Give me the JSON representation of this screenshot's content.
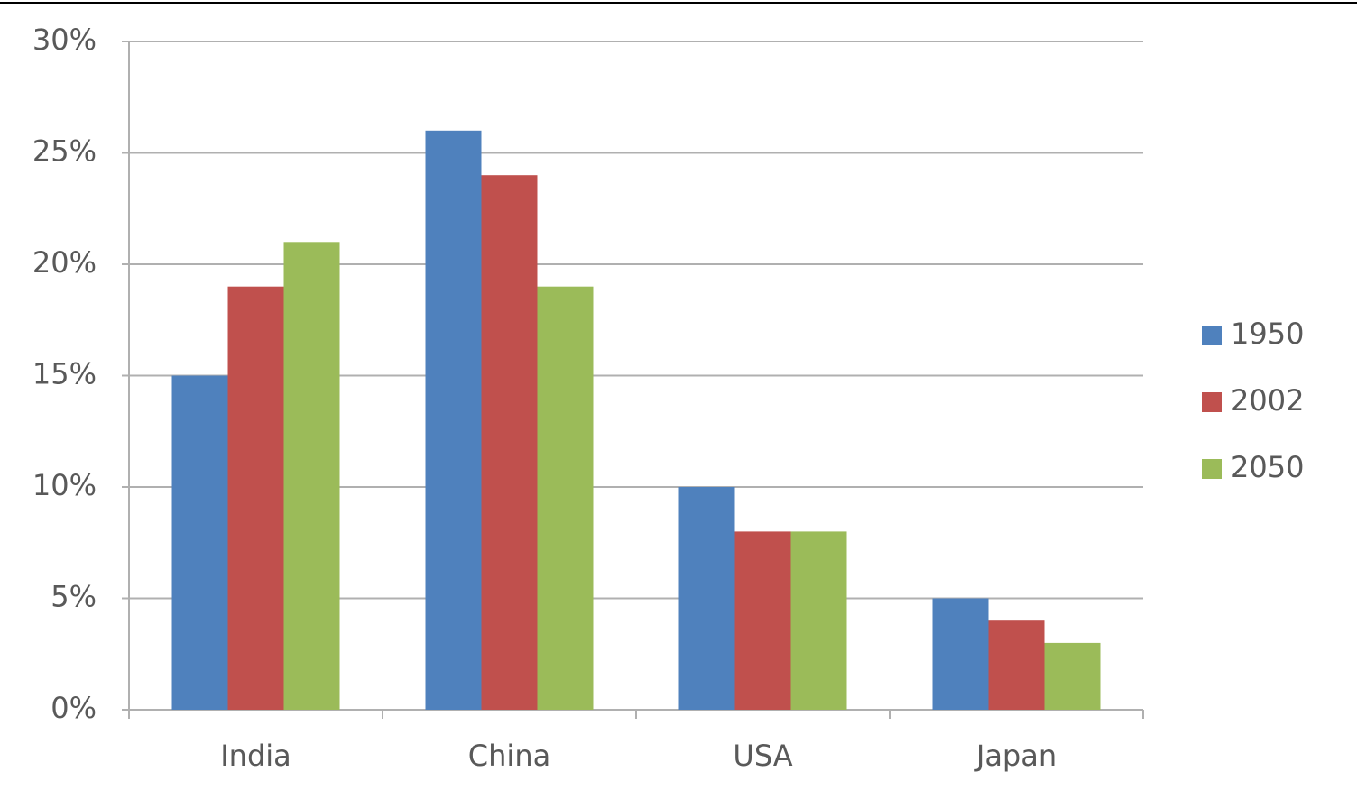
{
  "chart_data": {
    "type": "bar",
    "categories": [
      "India",
      "China",
      "USA",
      "Japan"
    ],
    "series": [
      {
        "name": "1950",
        "color": "#4f81bd",
        "values": [
          15,
          26,
          10,
          5
        ]
      },
      {
        "name": "2002",
        "color": "#c0504d",
        "values": [
          19,
          24,
          8,
          4
        ]
      },
      {
        "name": "2050",
        "color": "#9bbb59",
        "values": [
          21,
          19,
          8,
          3
        ]
      }
    ],
    "ylim": [
      0,
      30
    ],
    "yticks": [
      {
        "value": 0,
        "label": "0%"
      },
      {
        "value": 5,
        "label": "5%"
      },
      {
        "value": 10,
        "label": "10%"
      },
      {
        "value": 15,
        "label": "15%"
      },
      {
        "value": 20,
        "label": "20%"
      },
      {
        "value": 25,
        "label": "25%"
      },
      {
        "value": 30,
        "label": "30%"
      }
    ],
    "grid": true,
    "legend": "right"
  }
}
